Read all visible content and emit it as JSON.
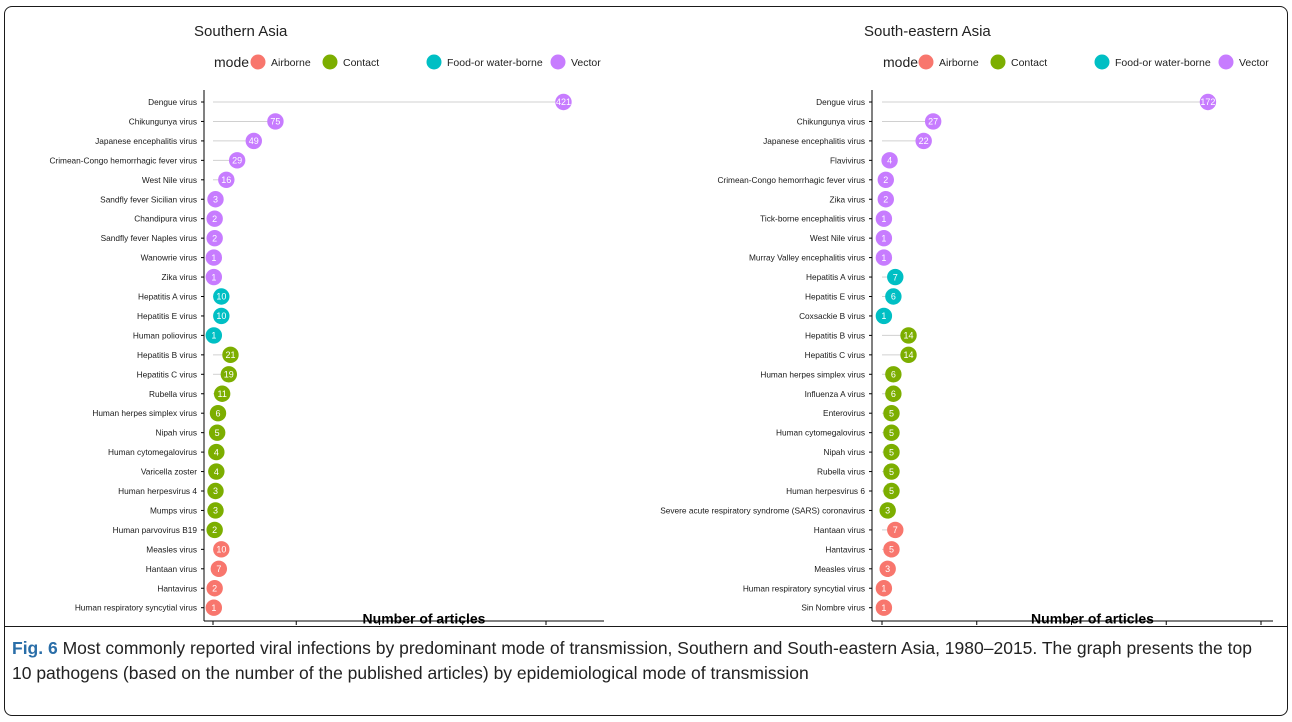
{
  "colors": {
    "Airborne": "#F8766D",
    "Contact": "#7CAE00",
    "Food-or water-borne": "#00BFC4",
    "Vector": "#C77CFF",
    "stem": "#d0d0d0"
  },
  "legend": {
    "title": "mode",
    "entries": [
      "Airborne",
      "Contact",
      "Food-or water-borne",
      "Vector"
    ]
  },
  "caption": {
    "label": "Fig. 6",
    "text": " Most commonly reported viral infections by predominant mode of transmission, Southern and South-eastern Asia, 1980–2015. The graph presents the top 10 pathogens (based on the number of the published articles) by epidemiological mode of transmission"
  },
  "chart_data": [
    {
      "type": "lollipop",
      "title": "Southern Asia",
      "xlabel": "Number of articles",
      "ylabel": "",
      "xlim": [
        0,
        460
      ],
      "xticks": [
        0,
        100,
        200,
        300,
        400
      ],
      "legend_position": "top",
      "grid": false,
      "points": [
        {
          "virus": "Dengue virus",
          "value": 421,
          "mode": "Vector"
        },
        {
          "virus": "Chikungunya virus",
          "value": 75,
          "mode": "Vector"
        },
        {
          "virus": "Japanese encephalitis virus",
          "value": 49,
          "mode": "Vector"
        },
        {
          "virus": "Crimean-Congo hemorrhagic fever virus",
          "value": 29,
          "mode": "Vector"
        },
        {
          "virus": "West Nile virus",
          "value": 16,
          "mode": "Vector"
        },
        {
          "virus": "Sandfly fever Sicilian virus",
          "value": 3,
          "mode": "Vector"
        },
        {
          "virus": "Chandipura virus",
          "value": 2,
          "mode": "Vector"
        },
        {
          "virus": "Sandfly fever Naples virus",
          "value": 2,
          "mode": "Vector"
        },
        {
          "virus": "Wanowrie virus",
          "value": 1,
          "mode": "Vector"
        },
        {
          "virus": "Zika virus",
          "value": 1,
          "mode": "Vector"
        },
        {
          "virus": "Hepatitis A virus",
          "value": 10,
          "mode": "Food-or water-borne"
        },
        {
          "virus": "Hepatitis E virus",
          "value": 10,
          "mode": "Food-or water-borne"
        },
        {
          "virus": "Human poliovirus",
          "value": 1,
          "mode": "Food-or water-borne"
        },
        {
          "virus": "Hepatitis B virus",
          "value": 21,
          "mode": "Contact"
        },
        {
          "virus": "Hepatitis C virus",
          "value": 19,
          "mode": "Contact"
        },
        {
          "virus": "Rubella virus",
          "value": 11,
          "mode": "Contact"
        },
        {
          "virus": "Human herpes simplex virus",
          "value": 6,
          "mode": "Contact"
        },
        {
          "virus": "Nipah virus",
          "value": 5,
          "mode": "Contact"
        },
        {
          "virus": "Human cytomegalovirus",
          "value": 4,
          "mode": "Contact"
        },
        {
          "virus": "Varicella zoster",
          "value": 4,
          "mode": "Contact"
        },
        {
          "virus": "Human herpesvirus 4",
          "value": 3,
          "mode": "Contact"
        },
        {
          "virus": "Mumps virus",
          "value": 3,
          "mode": "Contact"
        },
        {
          "virus": "Human parvovirus B19",
          "value": 2,
          "mode": "Contact"
        },
        {
          "virus": "Measles virus",
          "value": 10,
          "mode": "Airborne"
        },
        {
          "virus": "Hantaan virus",
          "value": 7,
          "mode": "Airborne"
        },
        {
          "virus": "Hantavirus",
          "value": 2,
          "mode": "Airborne"
        },
        {
          "virus": "Human respiratory syncytial virus",
          "value": 1,
          "mode": "Airborne"
        }
      ]
    },
    {
      "type": "lollipop",
      "title": "South-eastern Asia",
      "xlabel": "Number of articles",
      "ylabel": "",
      "xlim": [
        0,
        200
      ],
      "xticks": [
        0,
        50,
        100,
        150,
        200
      ],
      "legend_position": "top",
      "grid": false,
      "points": [
        {
          "virus": "Dengue virus",
          "value": 172,
          "mode": "Vector"
        },
        {
          "virus": "Chikungunya virus",
          "value": 27,
          "mode": "Vector"
        },
        {
          "virus": "Japanese encephalitis virus",
          "value": 22,
          "mode": "Vector"
        },
        {
          "virus": "Flavivirus",
          "value": 4,
          "mode": "Vector"
        },
        {
          "virus": "Crimean-Congo hemorrhagic fever virus",
          "value": 2,
          "mode": "Vector"
        },
        {
          "virus": "Zika virus",
          "value": 2,
          "mode": "Vector"
        },
        {
          "virus": "Tick-borne encephalitis virus",
          "value": 1,
          "mode": "Vector"
        },
        {
          "virus": "West Nile virus",
          "value": 1,
          "mode": "Vector"
        },
        {
          "virus": "Murray Valley encephalitis virus",
          "value": 1,
          "mode": "Vector"
        },
        {
          "virus": "Hepatitis A virus",
          "value": 7,
          "mode": "Food-or water-borne"
        },
        {
          "virus": "Hepatitis E virus",
          "value": 6,
          "mode": "Food-or water-borne"
        },
        {
          "virus": "Coxsackie B virus",
          "value": 1,
          "mode": "Food-or water-borne"
        },
        {
          "virus": "Hepatitis B virus",
          "value": 14,
          "mode": "Contact"
        },
        {
          "virus": "Hepatitis C virus",
          "value": 14,
          "mode": "Contact"
        },
        {
          "virus": "Human herpes simplex virus",
          "value": 6,
          "mode": "Contact"
        },
        {
          "virus": "Influenza A virus",
          "value": 6,
          "mode": "Contact"
        },
        {
          "virus": "Enterovirus",
          "value": 5,
          "mode": "Contact"
        },
        {
          "virus": "Human cytomegalovirus",
          "value": 5,
          "mode": "Contact"
        },
        {
          "virus": "Nipah virus",
          "value": 5,
          "mode": "Contact"
        },
        {
          "virus": "Rubella virus",
          "value": 5,
          "mode": "Contact"
        },
        {
          "virus": "Human herpesvirus 6",
          "value": 5,
          "mode": "Contact"
        },
        {
          "virus": "Severe acute respiratory syndrome (SARS) coronavirus",
          "value": 3,
          "mode": "Contact"
        },
        {
          "virus": "Hantaan virus",
          "value": 7,
          "mode": "Airborne"
        },
        {
          "virus": "Hantavirus",
          "value": 5,
          "mode": "Airborne"
        },
        {
          "virus": "Measles virus",
          "value": 3,
          "mode": "Airborne"
        },
        {
          "virus": "Human respiratory syncytial virus",
          "value": 1,
          "mode": "Airborne"
        },
        {
          "virus": "Sin Nombre virus",
          "value": 1,
          "mode": "Airborne"
        }
      ]
    }
  ]
}
